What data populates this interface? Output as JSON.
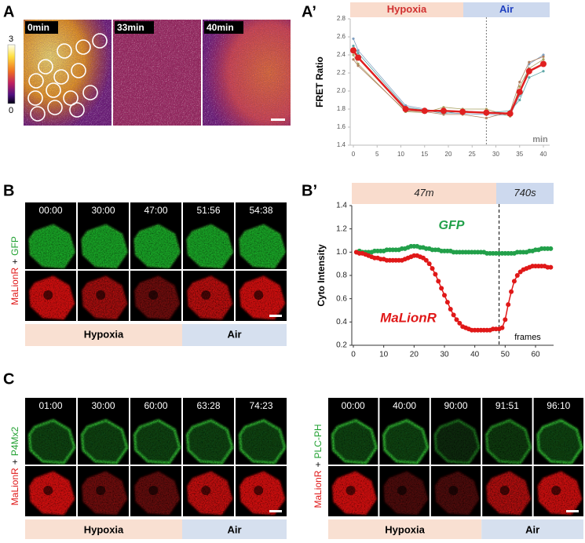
{
  "panel_labels": [
    "A",
    "A’",
    "B",
    "B’",
    "C"
  ],
  "panel_a": {
    "times": [
      "0min",
      "33min",
      "40min"
    ],
    "colorbar": {
      "max": 3,
      "min": 0
    }
  },
  "panel_b": {
    "times": [
      "00:00",
      "30:00",
      "47:00",
      "51:56",
      "54:38"
    ],
    "channels": [
      "MaLionR",
      "+",
      "GFP"
    ],
    "conditions": [
      "Hypoxia",
      "Air"
    ]
  },
  "panel_c_left": {
    "times": [
      "01:00",
      "30:00",
      "60:00",
      "63:28",
      "74:23"
    ],
    "channels": [
      "MaLionR",
      "+",
      "P4Mx2"
    ],
    "conditions": [
      "Hypoxia",
      "Air"
    ]
  },
  "panel_c_right": {
    "times": [
      "00:00",
      "40:00",
      "90:00",
      "91:51",
      "96:10"
    ],
    "channels": [
      "MaLionR",
      "+",
      "PLC-PH"
    ],
    "conditions": [
      "Hypoxia",
      "Air"
    ]
  },
  "chart_data": [
    {
      "type": "line",
      "header": [
        "Hypoxia",
        "Air"
      ],
      "ylabel": "FRET Ratio",
      "xlabel": "min",
      "divider": 28,
      "x": [
        0,
        1,
        11,
        15,
        19,
        23,
        28,
        33,
        35,
        37,
        40
      ],
      "xlim": [
        0,
        40
      ],
      "xticks": [
        0,
        5,
        10,
        15,
        20,
        25,
        30,
        35,
        40
      ],
      "ylim": [
        1.4,
        2.8
      ],
      "yticks": [
        1.4,
        1.6,
        1.8,
        {
          "value": 2,
          "label": "2.0"
        },
        2.2,
        2.4,
        2.6,
        2.8
      ],
      "series": [
        {
          "color": "#e02020",
          "values": [
            2.45,
            2.37,
            1.8,
            1.78,
            1.78,
            1.77,
            1.76,
            1.75,
            1.99,
            2.22,
            2.3
          ]
        },
        {
          "color": "#7f9fc0",
          "values": [
            2.58,
            2.45,
            1.84,
            1.8,
            1.76,
            1.75,
            1.74,
            1.73,
            1.95,
            2.3,
            2.4
          ]
        },
        {
          "color": "#a8a060",
          "values": [
            2.4,
            2.3,
            1.77,
            1.76,
            1.82,
            1.8,
            1.8,
            1.72,
            2.05,
            2.25,
            2.35
          ]
        },
        {
          "color": "#60a8a8",
          "values": [
            2.5,
            2.42,
            1.82,
            1.79,
            1.75,
            1.78,
            1.76,
            1.78,
            1.9,
            2.15,
            2.22
          ]
        },
        {
          "color": "#b08060",
          "values": [
            2.35,
            2.28,
            1.78,
            1.77,
            1.74,
            1.74,
            1.7,
            1.77,
            2.1,
            2.32,
            2.38
          ]
        }
      ]
    },
    {
      "type": "line",
      "header": [
        "47m",
        "740s"
      ],
      "ylabel": "Cyto Intensity",
      "xlabel": "frames",
      "divider": 48,
      "x": [
        1,
        2,
        3,
        4,
        5,
        6,
        7,
        8,
        9,
        10,
        11,
        12,
        13,
        14,
        15,
        16,
        17,
        18,
        19,
        20,
        21,
        22,
        23,
        24,
        25,
        26,
        27,
        28,
        29,
        30,
        31,
        32,
        33,
        34,
        35,
        36,
        37,
        38,
        39,
        40,
        41,
        42,
        43,
        44,
        45,
        46,
        47,
        48,
        49,
        50,
        51,
        52,
        53,
        54,
        55,
        56,
        57,
        58,
        59,
        60,
        61,
        62,
        63,
        64,
        65
      ],
      "xlim": [
        0,
        66
      ],
      "xticks": [
        0,
        10,
        20,
        30,
        40,
        50,
        60
      ],
      "ylim": [
        0.2,
        1.4
      ],
      "yticks": [
        0.2,
        0.4,
        0.6,
        0.8,
        {
          "value": 1,
          "label": "1.0"
        },
        1.2,
        1.4
      ],
      "series": [
        {
          "name": "GFP",
          "color": "#22a04a",
          "values": [
            1.0,
            1.01,
            1.0,
            1.0,
            1.0,
            1.0,
            1.01,
            1.01,
            1.01,
            1.01,
            1.02,
            1.02,
            1.02,
            1.02,
            1.02,
            1.03,
            1.03,
            1.04,
            1.05,
            1.05,
            1.05,
            1.04,
            1.04,
            1.03,
            1.03,
            1.02,
            1.02,
            1.02,
            1.01,
            1.01,
            1.01,
            1.01,
            1.0,
            1.0,
            1.0,
            1.0,
            1.0,
            1.0,
            1.0,
            1.0,
            1.0,
            1.0,
            1.0,
            0.99,
            0.99,
            0.99,
            0.99,
            0.99,
            0.99,
            0.99,
            0.99,
            0.99,
            0.99,
            1.0,
            1.0,
            1.0,
            1.0,
            1.01,
            1.01,
            1.02,
            1.02,
            1.03,
            1.03,
            1.03,
            1.03
          ]
        },
        {
          "name": "MaLionR",
          "color": "#e01818",
          "values": [
            1.0,
            0.99,
            0.99,
            0.98,
            0.97,
            0.96,
            0.95,
            0.95,
            0.94,
            0.94,
            0.93,
            0.93,
            0.93,
            0.93,
            0.93,
            0.93,
            0.94,
            0.95,
            0.96,
            0.97,
            0.97,
            0.96,
            0.95,
            0.93,
            0.9,
            0.86,
            0.81,
            0.75,
            0.69,
            0.63,
            0.57,
            0.51,
            0.46,
            0.42,
            0.39,
            0.36,
            0.35,
            0.34,
            0.33,
            0.33,
            0.33,
            0.33,
            0.33,
            0.33,
            0.33,
            0.34,
            0.34,
            0.34,
            0.35,
            0.42,
            0.55,
            0.66,
            0.75,
            0.8,
            0.83,
            0.85,
            0.86,
            0.87,
            0.88,
            0.88,
            0.88,
            0.88,
            0.88,
            0.87,
            0.87
          ]
        }
      ]
    }
  ]
}
